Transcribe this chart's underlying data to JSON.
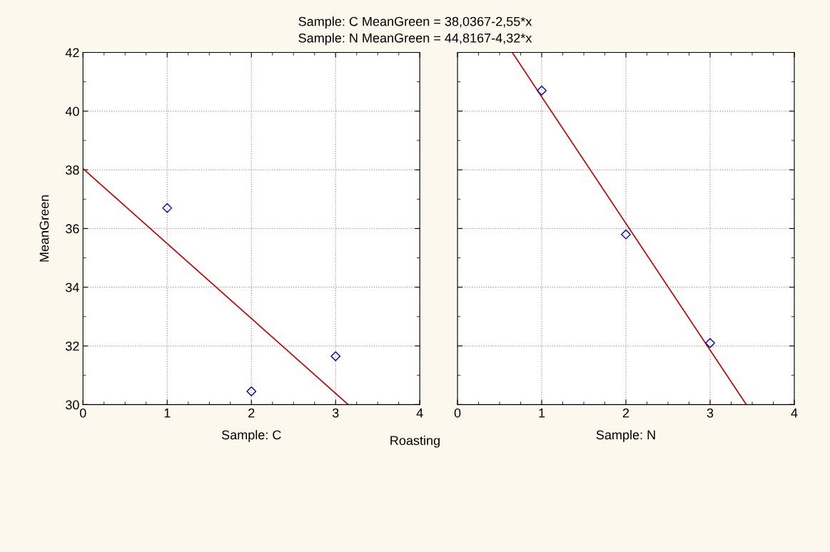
{
  "chart_data": [
    {
      "type": "scatter",
      "title": "Sample: C MeanGreen = 38,0367-2,55*x",
      "xlabel": "Sample: C",
      "ylabel": "MeanGreen",
      "annotations": [
        "Roasting"
      ],
      "xlim": [
        0,
        4
      ],
      "xticks": [
        0,
        1,
        2,
        3,
        4
      ],
      "ylim": [
        30,
        42
      ],
      "yticks": [
        30,
        32,
        34,
        36,
        38,
        40,
        42
      ],
      "grid": true,
      "series": [
        {
          "marker": "diamond",
          "color": "#0000aa",
          "x": [
            1,
            2,
            3
          ],
          "values": [
            36.7,
            30.45,
            31.65
          ]
        },
        {
          "type": "line",
          "marker": "none",
          "color": "#c00000",
          "x": [
            0,
            3.15
          ],
          "values": [
            38.04,
            30.0
          ]
        }
      ]
    },
    {
      "type": "scatter",
      "title": "Sample: N MeanGreen = 44,8167-4,32*x",
      "xlabel": "Sample: N",
      "xlim": [
        0,
        4
      ],
      "xticks": [
        0,
        1,
        2,
        3,
        4
      ],
      "ylim": [
        30,
        42
      ],
      "yticks": [
        30,
        32,
        34,
        36,
        38,
        40,
        42
      ],
      "tick_labels": "x",
      "grid": true,
      "series": [
        {
          "marker": "diamond",
          "color": "#0000aa",
          "x": [
            1,
            2,
            3
          ],
          "values": [
            40.7,
            35.8,
            32.1
          ]
        },
        {
          "type": "line",
          "marker": "none",
          "color": "#c00000",
          "x": [
            0.65,
            3.43
          ],
          "values": [
            42.0,
            30.0
          ]
        }
      ]
    }
  ]
}
